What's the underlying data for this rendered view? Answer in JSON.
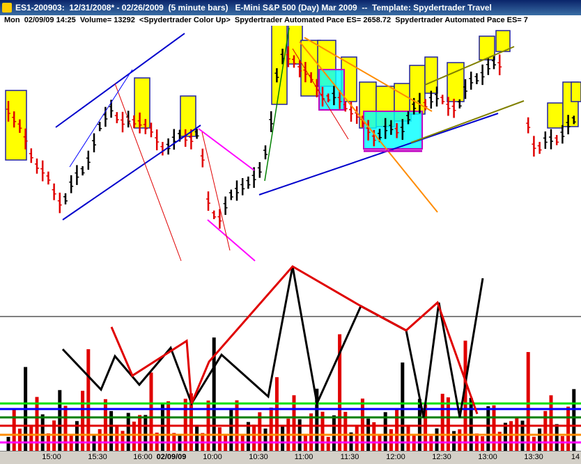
{
  "window": {
    "title": "ES1-200903:  12/31/2008* - 02/26/2009  (5 minute bars)   E-Mini S&P 500 (Day) Mar 2009  --  Template: Spydertrader Travel"
  },
  "info_line": "Mon  02/09/09 14:25  Volume= 13292  <Spydertrader Color Up>  Spydertrader Automated Pace ES= 2658.72  Spydertrader Automated Pace ES= 7",
  "time_axis": [
    "15:00",
    "15:30",
    "16:00",
    "02/09/09",
    "10:00",
    "10:30",
    "11:00",
    "11:30",
    "12:00",
    "12:30",
    "13:00",
    "13:30",
    "14"
  ]
}
